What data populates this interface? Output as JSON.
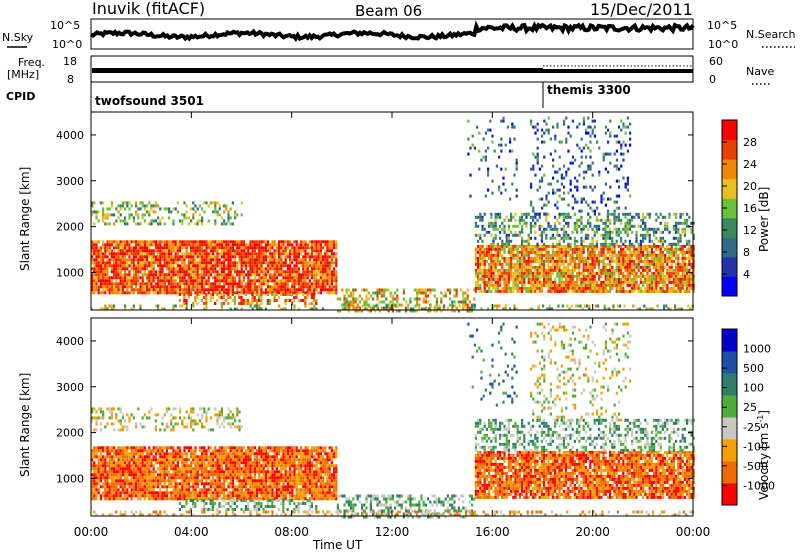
{
  "header": {
    "station": "Inuvik (fitACF)",
    "beam": "Beam 06",
    "date": "15/Dec/2011"
  },
  "noise_panel": {
    "left_label": "N.Sky",
    "right_label": "N.Search",
    "yticks": [
      "10^5",
      "10^0"
    ]
  },
  "freq_panel": {
    "left_label": "Freq.",
    "left_units": "[MHz]",
    "left_ticks": [
      "18",
      "8"
    ],
    "right_label": "Nave",
    "right_ticks": [
      "60",
      "0"
    ]
  },
  "cpid_panel": {
    "label": "CPID",
    "segments": [
      {
        "name": "twofsound 3501",
        "start_hour": 0
      },
      {
        "name": "themis 3300",
        "start_hour": 18
      }
    ]
  },
  "power_panel": {
    "colorbar_label": "Power [dB]",
    "colorbar_ticks": [
      "28",
      "24",
      "20",
      "16",
      "12",
      "8",
      "4"
    ]
  },
  "velocity_panel": {
    "colorbar_label": "Velocity [m s",
    "colorbar_label_sup": "-1",
    "colorbar_label_end": "]",
    "colorbar_ticks": [
      "1000",
      "500",
      "100",
      "25",
      "-25",
      "-100",
      "-500",
      "-1000"
    ]
  },
  "axes": {
    "ylabel": "Slant Range [km]",
    "xlabel": "Time UT",
    "xticks": [
      "00:00",
      "04:00",
      "08:00",
      "12:00",
      "16:00",
      "20:00",
      "00:00"
    ],
    "yticks": [
      "1000",
      "2000",
      "3000",
      "4000"
    ]
  },
  "chart_data": {
    "type": "heatmap",
    "title": "Inuvik (fitACF)",
    "xlabel": "Time UT",
    "ylabel": "Slant Range [km]",
    "xlim": [
      0,
      24
    ],
    "ylim": [
      180,
      4500
    ],
    "power_colors": [
      "#0000ff",
      "#2233aa",
      "#2e6b8c",
      "#3a8a5a",
      "#6cbf3a",
      "#e8c020",
      "#f08a00",
      "#e84000",
      "#ff0000"
    ],
    "velocity_colors": [
      "#0000cc",
      "#1f4fa6",
      "#2e7e6a",
      "#4fae3a",
      "#c8c8c0",
      "#f5a000",
      "#f06a00",
      "#ff0000"
    ],
    "echo_regions": [
      {
        "t0": 0.0,
        "t1": 9.8,
        "r0": 550,
        "r1": 1700,
        "power_dB": 26,
        "velocity": -300,
        "density": 0.9
      },
      {
        "t0": 0.0,
        "t1": 6.0,
        "r0": 2050,
        "r1": 2550,
        "power_dB": 14,
        "velocity": -20,
        "density": 0.35
      },
      {
        "t0": 3.5,
        "t1": 9.0,
        "r0": 300,
        "r1": 550,
        "power_dB": 22,
        "velocity": 30,
        "density": 0.5
      },
      {
        "t0": 9.8,
        "t1": 15.3,
        "r0": 180,
        "r1": 650,
        "power_dB": 18,
        "velocity": 60,
        "density": 0.45
      },
      {
        "t0": 15.3,
        "t1": 24.0,
        "r0": 600,
        "r1": 1600,
        "power_dB": 25,
        "velocity": -400,
        "density": 0.85
      },
      {
        "t0": 15.3,
        "t1": 24.0,
        "r0": 1600,
        "r1": 2300,
        "power_dB": 12,
        "velocity": 80,
        "density": 0.45
      },
      {
        "t0": 17.5,
        "t1": 21.5,
        "r0": 2300,
        "r1": 4400,
        "power_dB": 6,
        "velocity": 0,
        "density": 0.18
      },
      {
        "t0": 15.0,
        "t1": 17.0,
        "r0": 2600,
        "r1": 4400,
        "power_dB": 8,
        "velocity": 100,
        "density": 0.1
      },
      {
        "t0": 0.0,
        "t1": 24.0,
        "r0": 180,
        "r1": 300,
        "power_dB": 16,
        "velocity": -60,
        "density": 0.3
      }
    ]
  }
}
